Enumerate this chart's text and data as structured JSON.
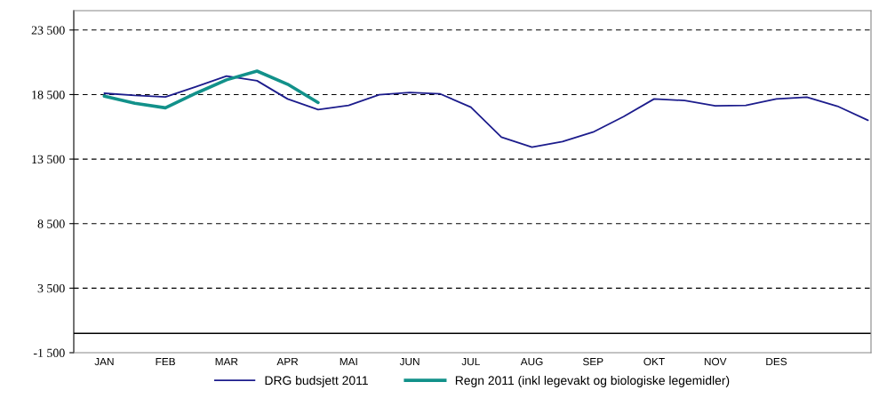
{
  "chart_data": {
    "type": "line",
    "categories": [
      "JAN",
      null,
      "FEB",
      null,
      "MAR",
      null,
      "APR",
      null,
      "MAI",
      null,
      "JUN",
      null,
      "JUL",
      null,
      "AUG",
      null,
      "SEP",
      null,
      "OKT",
      null,
      "NOV",
      null,
      "DES",
      null,
      null,
      null
    ],
    "series": [
      {
        "name": "DRG budsjett 2011",
        "color": "#1c1c8c",
        "values": [
          18600,
          18430,
          18320,
          19110,
          19930,
          19570,
          18160,
          17340,
          17660,
          18480,
          18660,
          18550,
          17520,
          15200,
          14420,
          14860,
          15590,
          16790,
          18160,
          18040,
          17630,
          17660,
          18160,
          18300,
          17600,
          16510
        ]
      },
      {
        "name": "Regn 2011 (inkl legevakt og biologiske legemidler)",
        "color": "#12918a",
        "values": [
          18380,
          17820,
          17470,
          18600,
          19640,
          20320,
          19300,
          17880,
          null,
          null,
          null,
          null,
          null,
          null,
          null,
          null,
          null,
          null,
          null,
          null,
          null,
          null,
          null,
          null,
          null,
          null
        ]
      }
    ],
    "ylim": [
      -1500,
      25000
    ],
    "yticks": [
      {
        "value": -1500,
        "label": "-1 500"
      },
      {
        "value": 3500,
        "label": "3 500"
      },
      {
        "value": 8500,
        "label": "8 500"
      },
      {
        "value": 13500,
        "label": "13 500"
      },
      {
        "value": 18500,
        "label": "18 500"
      },
      {
        "value": 23500,
        "label": "23 500"
      }
    ],
    "grid": "y",
    "ref_lines": [
      {
        "axis": "y",
        "value": 0,
        "color": "#000000",
        "line_style": "solid"
      }
    ],
    "legend": "bottom",
    "marker": "none",
    "line_style": "solid"
  }
}
